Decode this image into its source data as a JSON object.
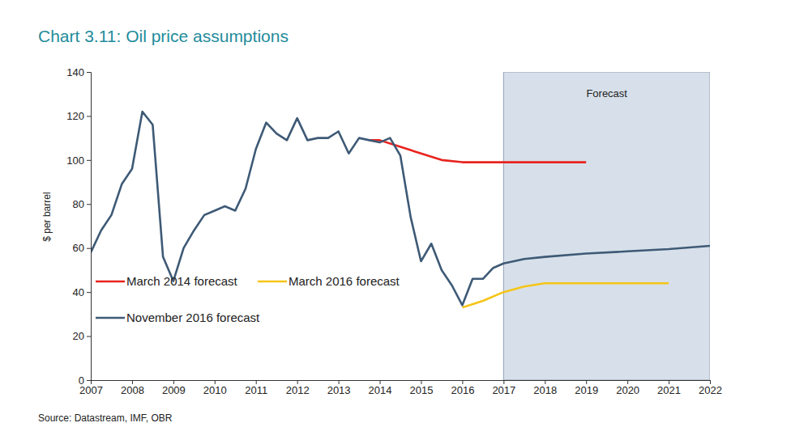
{
  "chart_data": {
    "type": "line",
    "title": "Chart 3.11: Oil price assumptions",
    "y_label": "$ per barrel",
    "source": "Source: Datastream, IMF, OBR",
    "xlim": [
      2007,
      2022
    ],
    "xticks": [
      2007,
      2008,
      2009,
      2010,
      2011,
      2012,
      2013,
      2014,
      2015,
      2016,
      2017,
      2018,
      2019,
      2020,
      2021,
      2022
    ],
    "ylim": [
      0,
      140
    ],
    "yticks": [
      0,
      20,
      40,
      60,
      80,
      100,
      120,
      140
    ],
    "grid": false,
    "legend": "lower left",
    "annotations": [
      {
        "text": "Forecast",
        "x_start": 2017,
        "x_end": 2022
      }
    ],
    "series": [
      {
        "name": "March 2014 forecast",
        "color": "#e8231e",
        "x": [
          2013.75,
          2014,
          2014.5,
          2015,
          2015.5,
          2016,
          2017,
          2018,
          2019
        ],
        "values": [
          109,
          109,
          106,
          103,
          100,
          99,
          99,
          99,
          99
        ]
      },
      {
        "name": "March 2016 forecast",
        "color": "#f5c518",
        "x": [
          2016,
          2016.5,
          2017,
          2017.5,
          2018,
          2019,
          2020,
          2021
        ],
        "values": [
          33,
          36,
          40,
          42.5,
          44,
          44,
          44,
          44
        ]
      },
      {
        "name": "November 2016 forecast",
        "color": "#3e5a76",
        "x": [
          2007,
          2007.25,
          2007.5,
          2007.75,
          2008,
          2008.25,
          2008.5,
          2008.75,
          2009,
          2009.25,
          2009.5,
          2009.75,
          2010,
          2010.25,
          2010.5,
          2010.75,
          2011,
          2011.25,
          2011.5,
          2011.75,
          2012,
          2012.25,
          2012.5,
          2012.75,
          2013,
          2013.25,
          2013.5,
          2013.75,
          2014,
          2014.25,
          2014.5,
          2014.75,
          2015,
          2015.25,
          2015.5,
          2015.75,
          2016,
          2016.25,
          2016.5,
          2016.75,
          2017,
          2017.5,
          2018,
          2019,
          2020,
          2021,
          2022
        ],
        "values": [
          58,
          68,
          75,
          89,
          96,
          122,
          116,
          56,
          45,
          60,
          68,
          75,
          77,
          79,
          77,
          87,
          105,
          117,
          112,
          109,
          119,
          109,
          110,
          110,
          113,
          103,
          110,
          109,
          108,
          110,
          102,
          74,
          54,
          62,
          50,
          43,
          34,
          46,
          46,
          51,
          53,
          55,
          56,
          57.5,
          58.5,
          59.5,
          61
        ]
      }
    ]
  }
}
